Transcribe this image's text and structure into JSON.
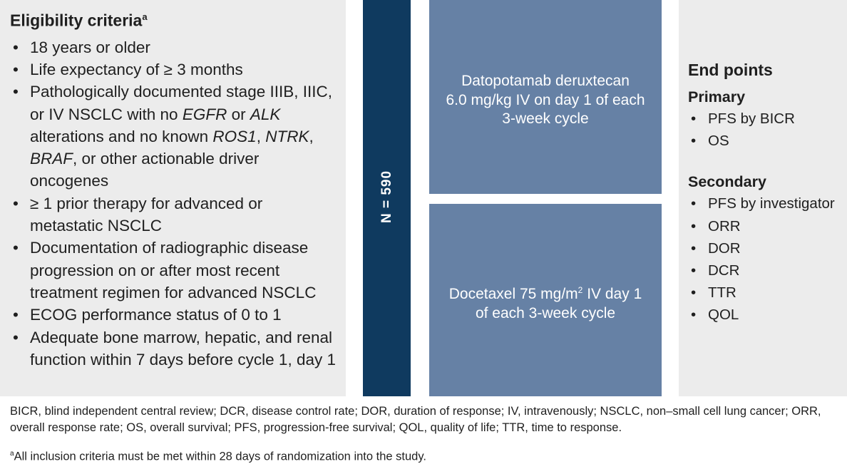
{
  "eligibility": {
    "title": "Eligibility criteria",
    "title_sup": "a",
    "items": [
      {
        "parts": [
          {
            "t": "18 years or older"
          }
        ]
      },
      {
        "parts": [
          {
            "t": "Life expectancy of ≥ 3 months"
          }
        ]
      },
      {
        "parts": [
          {
            "t": "Pathologically documented stage IIIB, IIIC, or IV NSCLC with no "
          },
          {
            "t": "EGFR",
            "i": true
          },
          {
            "t": " or "
          },
          {
            "t": "ALK",
            "i": true
          },
          {
            "t": " alterations and no known "
          },
          {
            "t": "ROS1",
            "i": true
          },
          {
            "t": ", "
          },
          {
            "t": "NTRK",
            "i": true
          },
          {
            "t": ", "
          },
          {
            "t": "BRAF",
            "i": true
          },
          {
            "t": ", or other actionable driver oncogenes"
          }
        ]
      },
      {
        "parts": [
          {
            "t": "≥ 1 prior therapy for advanced or metastatic NSCLC"
          }
        ]
      },
      {
        "parts": [
          {
            "t": "Documentation of radiographic disease progression on or after most recent treatment regimen for advanced NSCLC"
          }
        ]
      },
      {
        "parts": [
          {
            "t": "ECOG performance status of 0 to 1"
          }
        ]
      },
      {
        "parts": [
          {
            "t": "Adequate bone marrow, hepatic, and renal function within 7 days before cycle 1, day 1"
          }
        ]
      }
    ]
  },
  "n_label": "N = 590",
  "arm1": {
    "line1": "Datopotamab deruxtecan",
    "line2": "6.0 mg/kg IV on day 1 of each",
    "line3": "3-week cycle"
  },
  "arm2": {
    "line1_pre": "Docetaxel 75 mg/m",
    "line1_sup": "2",
    "line1_post": " IV day 1",
    "line2": "of each 3-week cycle"
  },
  "endpoints": {
    "title": "End points",
    "primary_label": "Primary",
    "primary": [
      "PFS by BICR",
      "OS"
    ],
    "secondary_label": "Secondary",
    "secondary": [
      "PFS by investigator",
      "ORR",
      "DOR",
      "DCR",
      "TTR",
      "QOL"
    ]
  },
  "footnotes": {
    "abbreviations": "BICR, blind independent central review; DCR, disease control rate; DOR, duration of response; IV, intravenously; NSCLC, non–small cell lung cancer; ORR, overall response rate; OS, overall survival; PFS, progression-free survival; QOL, quality of life; TTR, time to response.",
    "note_marker": "a",
    "note": "All inclusion criteria must be met within 28 days of randomization into the study."
  }
}
